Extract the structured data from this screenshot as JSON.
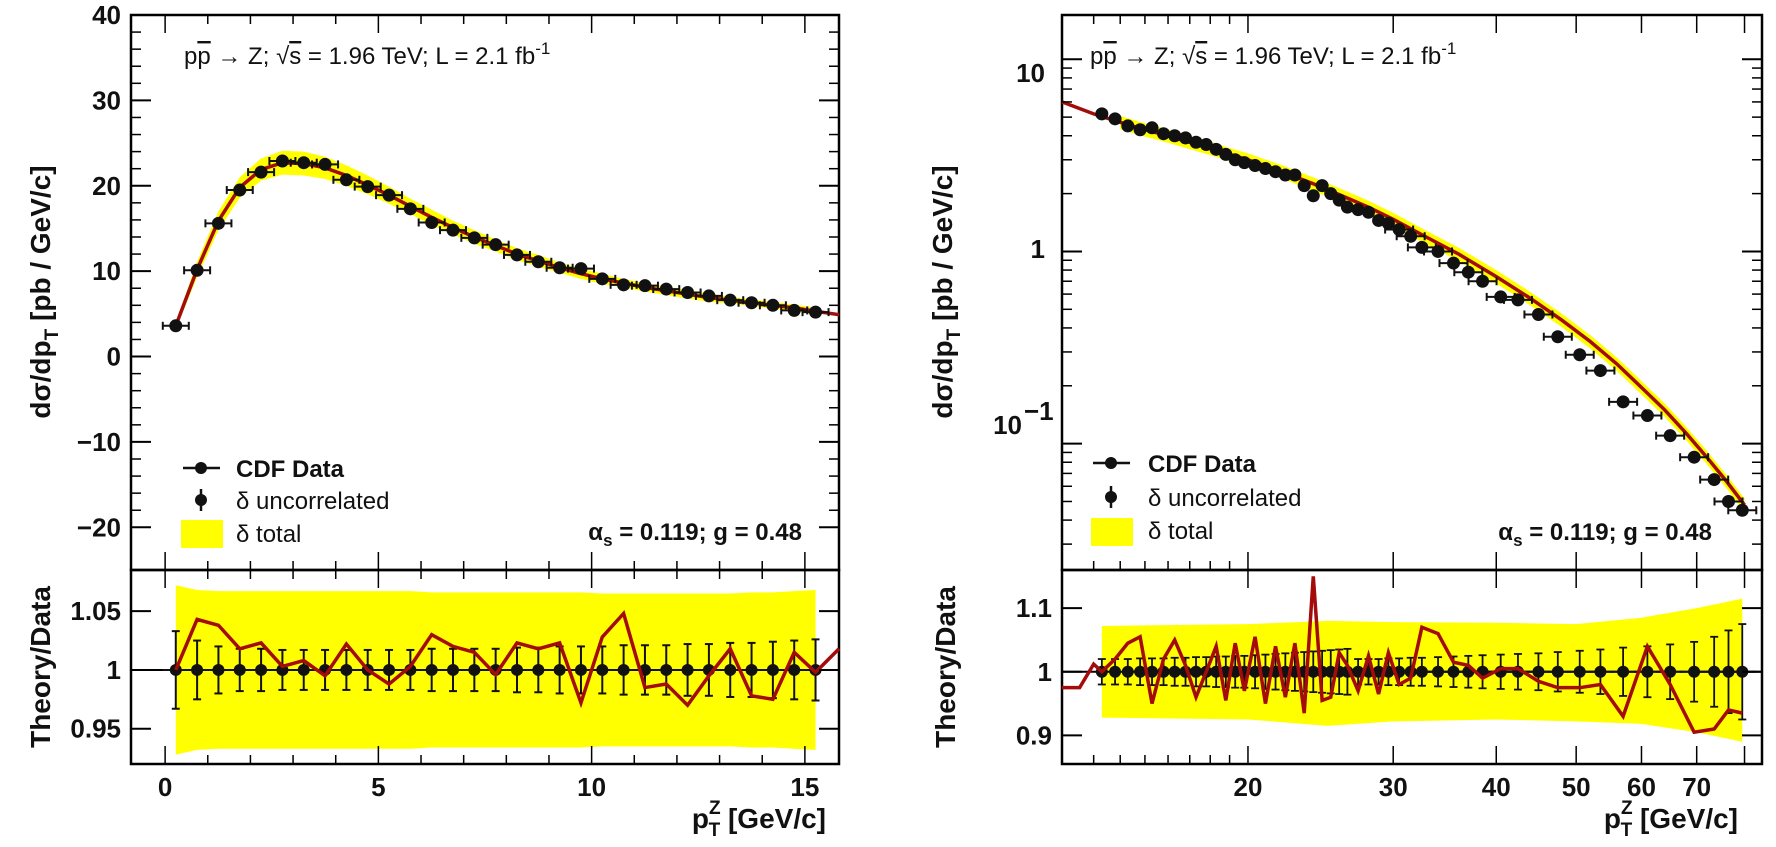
{
  "colors": {
    "band": "#ffff00",
    "theory": "#a40b0b",
    "data": "#111111",
    "axis": "#000000"
  },
  "chart_data": [
    {
      "type": "scatter",
      "panel": "left-top",
      "title": "",
      "ylabel": "dσ/dp_T [pb / GeV/c]",
      "ylabel_main": "dσ/dp",
      "ylabel_sub": "T",
      "ylabel_tail": " [pb / GeV/c]",
      "ylim": [
        -25,
        40
      ],
      "xlim": [
        -0.8,
        15.8
      ],
      "yscale": "linear",
      "yticks": [
        -20,
        -10,
        0,
        10,
        20,
        30,
        40
      ],
      "ytick_labels": [
        "−20",
        "−10",
        "0",
        "10",
        "20",
        "30",
        "40"
      ],
      "annotation": {
        "lhs": "p",
        "pbar": "p",
        "rest": " → Z; ",
        "sqrt": "√",
        "s": "s",
        "mid": " = 1.96 TeV; L = 2.1 fb",
        "exp": "-1"
      },
      "params": {
        "alpha": "α",
        "alpha_sub": "s",
        "rest": " = 0.119; g = 0.48"
      },
      "legend": [
        {
          "label": "CDF Data",
          "style": "line-marker"
        },
        {
          "label": "δ uncorrelated",
          "style": "marker-errorbar"
        },
        {
          "label": "δ total",
          "style": "fill"
        }
      ],
      "x": [
        0.25,
        0.75,
        1.25,
        1.75,
        2.25,
        2.75,
        3.25,
        3.75,
        4.25,
        4.75,
        5.25,
        5.75,
        6.25,
        6.75,
        7.25,
        7.75,
        8.25,
        8.75,
        9.25,
        9.75,
        10.25,
        10.75,
        11.25,
        11.75,
        12.25,
        12.75,
        13.25,
        13.75,
        14.25,
        14.75,
        15.25
      ],
      "y": [
        3.6,
        10.1,
        15.6,
        19.5,
        21.6,
        22.9,
        22.7,
        22.5,
        20.7,
        19.9,
        18.9,
        17.3,
        15.7,
        14.8,
        13.9,
        13.1,
        11.9,
        11.1,
        10.4,
        10.3,
        9.1,
        8.4,
        8.3,
        7.9,
        7.5,
        7.1,
        6.6,
        6.3,
        6.0,
        5.4,
        5.2
      ],
      "theory_x": [
        0.25,
        0.75,
        1.25,
        1.75,
        2.25,
        2.75,
        3.25,
        3.75,
        4.25,
        4.75,
        5.25,
        5.75,
        6.25,
        6.75,
        7.25,
        7.75,
        8.25,
        8.75,
        9.25,
        9.75,
        10.25,
        10.75,
        11.25,
        11.75,
        12.25,
        12.75,
        13.25,
        13.75,
        14.25,
        14.75,
        15.25,
        15.8
      ],
      "theory_y": [
        3.6,
        10.2,
        15.9,
        19.8,
        21.9,
        22.7,
        22.6,
        22.1,
        21.2,
        20.1,
        18.9,
        17.6,
        16.3,
        15.1,
        14.0,
        13.0,
        12.0,
        11.2,
        10.4,
        9.7,
        9.1,
        8.6,
        8.1,
        7.7,
        7.3,
        6.9,
        6.6,
        6.3,
        6.0,
        5.7,
        5.3,
        4.9
      ],
      "band_halfwidth": [
        0.4,
        0.9,
        1.1,
        1.2,
        1.3,
        1.4,
        1.4,
        1.3,
        1.2,
        1.1,
        1.0,
        0.9,
        0.9,
        0.8,
        0.8,
        0.7,
        0.7,
        0.7,
        0.6,
        0.6,
        0.6,
        0.5,
        0.5,
        0.5,
        0.5,
        0.5,
        0.4,
        0.4,
        0.4,
        0.4,
        0.4
      ]
    },
    {
      "type": "line",
      "panel": "left-ratio",
      "ylabel": "Theory/Data",
      "xlabel": "p_T^Z [GeV/c]",
      "xlabel_main": "p",
      "xlabel_sup": "Z",
      "xlabel_sub": "T",
      "xlabel_tail": " [GeV/c]",
      "ylim": [
        0.92,
        1.085
      ],
      "xlim": [
        -0.8,
        15.8
      ],
      "yticks": [
        0.95,
        1.0,
        1.05
      ],
      "ytick_labels": [
        "0.95",
        "1",
        "1.05"
      ],
      "xticks": [
        0,
        5,
        10,
        15
      ],
      "xtick_labels": [
        "0",
        "5",
        "10",
        "15"
      ],
      "x": [
        0.25,
        0.75,
        1.25,
        1.75,
        2.25,
        2.75,
        3.25,
        3.75,
        4.25,
        4.75,
        5.25,
        5.75,
        6.25,
        6.75,
        7.25,
        7.75,
        8.25,
        8.75,
        9.25,
        9.75,
        10.25,
        10.75,
        11.25,
        11.75,
        12.25,
        12.75,
        13.25,
        13.75,
        14.25,
        14.75,
        15.25
      ],
      "ratio": [
        1.0,
        1.043,
        1.038,
        1.018,
        1.023,
        1.003,
        1.008,
        0.995,
        1.022,
        1.0,
        0.988,
        1.003,
        1.03,
        1.02,
        1.015,
        0.996,
        1.023,
        1.018,
        1.023,
        0.972,
        1.028,
        1.048,
        0.985,
        0.988,
        0.97,
        0.995,
        1.018,
        0.978,
        0.975,
        1.015,
        0.998
      ],
      "ratio_tail": [
        15.8,
        1.018
      ],
      "err_half": [
        0.033,
        0.025,
        0.02,
        0.018,
        0.018,
        0.017,
        0.017,
        0.017,
        0.017,
        0.017,
        0.017,
        0.017,
        0.018,
        0.018,
        0.018,
        0.018,
        0.019,
        0.019,
        0.02,
        0.02,
        0.02,
        0.021,
        0.021,
        0.021,
        0.022,
        0.022,
        0.023,
        0.023,
        0.024,
        0.025,
        0.026
      ],
      "band_halfwidth": [
        0.072,
        0.068,
        0.067,
        0.067,
        0.067,
        0.067,
        0.067,
        0.067,
        0.067,
        0.067,
        0.067,
        0.067,
        0.066,
        0.066,
        0.066,
        0.066,
        0.066,
        0.066,
        0.066,
        0.066,
        0.065,
        0.065,
        0.065,
        0.065,
        0.065,
        0.065,
        0.065,
        0.066,
        0.066,
        0.067,
        0.068
      ]
    },
    {
      "type": "scatter",
      "panel": "right-top",
      "ylabel": "dσ/dp_T [pb / GeV/c]",
      "ylabel_main": "dσ/dp",
      "ylabel_sub": "T",
      "ylabel_tail": " [pb / GeV/c]",
      "yscale": "log",
      "ylim": [
        0.022,
        17
      ],
      "xlim": [
        11.9,
        84
      ],
      "xscale": "log",
      "yticks": [
        10,
        1,
        0.1
      ],
      "ytick_labels": [
        "10",
        "1",
        "10",
        "−1"
      ],
      "annotation": {
        "lhs": "p",
        "pbar": "p",
        "rest": " → Z; ",
        "sqrt": "√",
        "s": "s",
        "mid": " = 1.96 TeV; L = 2.1 fb",
        "exp": "-1"
      },
      "params": {
        "alpha": "α",
        "alpha_sub": "s",
        "rest": " = 0.119; g = 0.48"
      },
      "legend": [
        {
          "label": "CDF Data",
          "style": "line-marker"
        },
        {
          "label": "δ uncorrelated",
          "style": "marker-errorbar"
        },
        {
          "label": "δ total",
          "style": "fill"
        }
      ],
      "x": [
        13.3,
        13.8,
        14.3,
        14.8,
        15.3,
        15.8,
        16.3,
        16.8,
        17.3,
        17.8,
        18.3,
        18.8,
        19.3,
        19.8,
        20.4,
        21.0,
        21.6,
        22.2,
        22.8,
        23.4,
        24.0,
        24.6,
        25.2,
        25.8,
        26.4,
        27.2,
        28.0,
        28.8,
        29.6,
        30.5,
        31.5,
        32.5,
        34.0,
        35.5,
        37.0,
        38.5,
        40.5,
        42.5,
        45.0,
        47.5,
        50.5,
        53.5,
        57.0,
        61.0,
        65.0,
        69.5,
        73.5,
        76.5,
        79.5
      ],
      "y": [
        5.2,
        4.9,
        4.5,
        4.3,
        4.4,
        4.1,
        4.0,
        3.9,
        3.7,
        3.6,
        3.4,
        3.2,
        3.0,
        2.9,
        2.8,
        2.7,
        2.6,
        2.5,
        2.5,
        2.2,
        1.95,
        2.2,
        2.0,
        1.85,
        1.7,
        1.65,
        1.6,
        1.45,
        1.4,
        1.3,
        1.2,
        1.05,
        1.0,
        0.87,
        0.78,
        0.7,
        0.58,
        0.56,
        0.47,
        0.36,
        0.29,
        0.24,
        0.165,
        0.14,
        0.11,
        0.085,
        0.065,
        0.05,
        0.045
      ],
      "theory_x": [
        11.9,
        13,
        14,
        15,
        16,
        17,
        18,
        19,
        20,
        22,
        24,
        26,
        28,
        30,
        33,
        36,
        40,
        44,
        48,
        52,
        56,
        60,
        64,
        68,
        72,
        76,
        80
      ],
      "theory_y": [
        6.0,
        5.2,
        4.7,
        4.3,
        4.0,
        3.7,
        3.45,
        3.2,
        3.0,
        2.6,
        2.25,
        1.95,
        1.7,
        1.47,
        1.18,
        0.97,
        0.74,
        0.57,
        0.44,
        0.34,
        0.26,
        0.196,
        0.15,
        0.113,
        0.085,
        0.064,
        0.048
      ],
      "band_rel": 0.08
    },
    {
      "type": "line",
      "panel": "right-ratio",
      "ylabel": "Theory/Data",
      "xlabel": "p_T^Z [GeV/c]",
      "xlabel_main": "p",
      "xlabel_sup": "Z",
      "xlabel_sub": "T",
      "xlabel_tail": " [GeV/c]",
      "ylim": [
        0.855,
        1.16
      ],
      "xlim": [
        11.9,
        84
      ],
      "xscale": "log",
      "yticks": [
        0.9,
        1.0,
        1.1
      ],
      "ytick_labels": [
        "0.9",
        "1",
        "1.1"
      ],
      "xticks": [
        20,
        30,
        40,
        50,
        60,
        70
      ],
      "xtick_labels": [
        "20",
        "30",
        "40",
        "50",
        "60",
        "70"
      ],
      "x": [
        13.3,
        13.8,
        14.3,
        14.8,
        15.3,
        15.8,
        16.3,
        16.8,
        17.3,
        17.8,
        18.3,
        18.8,
        19.3,
        19.8,
        20.4,
        21.0,
        21.6,
        22.2,
        22.8,
        23.4,
        24.0,
        24.6,
        25.2,
        25.8,
        26.4,
        27.2,
        28.0,
        28.8,
        29.6,
        30.5,
        31.5,
        32.5,
        34.0,
        35.5,
        37.0,
        38.5,
        40.5,
        42.5,
        45.0,
        47.5,
        50.5,
        53.5,
        57.0,
        61.0,
        65.0,
        69.5,
        73.5,
        76.5,
        79.5
      ],
      "ratio_line": [
        [
          11.9,
          0.975
        ],
        [
          12.5,
          0.975
        ],
        [
          13.0,
          1.012
        ],
        [
          13.3,
          1.0
        ],
        [
          13.8,
          1.02
        ],
        [
          14.3,
          1.045
        ],
        [
          14.8,
          1.055
        ],
        [
          15.3,
          0.95
        ],
        [
          15.8,
          1.02
        ],
        [
          16.3,
          1.05
        ],
        [
          16.8,
          1.01
        ],
        [
          17.3,
          0.96
        ],
        [
          17.8,
          1.0
        ],
        [
          18.3,
          1.04
        ],
        [
          18.8,
          0.955
        ],
        [
          19.3,
          1.045
        ],
        [
          19.8,
          0.97
        ],
        [
          20.4,
          1.055
        ],
        [
          21.0,
          0.95
        ],
        [
          21.6,
          1.04
        ],
        [
          22.2,
          0.96
        ],
        [
          22.8,
          1.045
        ],
        [
          23.4,
          0.935
        ],
        [
          24.0,
          1.15
        ],
        [
          24.6,
          0.955
        ],
        [
          25.2,
          0.96
        ],
        [
          25.8,
          1.03
        ],
        [
          26.4,
          1.01
        ],
        [
          27.2,
          0.97
        ],
        [
          28.0,
          1.025
        ],
        [
          28.8,
          0.965
        ],
        [
          29.6,
          1.03
        ],
        [
          30.5,
          0.98
        ],
        [
          31.5,
          0.99
        ],
        [
          32.5,
          1.07
        ],
        [
          34.0,
          1.06
        ],
        [
          35.5,
          1.015
        ],
        [
          37.0,
          1.01
        ],
        [
          38.5,
          0.99
        ],
        [
          40.5,
          1.005
        ],
        [
          42.5,
          1.005
        ],
        [
          45.0,
          0.985
        ],
        [
          47.5,
          0.975
        ],
        [
          50.5,
          0.975
        ],
        [
          53.5,
          0.98
        ],
        [
          57.0,
          0.93
        ],
        [
          61.0,
          1.04
        ],
        [
          65.0,
          0.98
        ],
        [
          69.5,
          0.905
        ],
        [
          73.5,
          0.91
        ],
        [
          76.5,
          0.94
        ],
        [
          79.5,
          0.935
        ]
      ],
      "err_half": [
        0.02,
        0.02,
        0.02,
        0.021,
        0.021,
        0.021,
        0.022,
        0.022,
        0.023,
        0.023,
        0.024,
        0.024,
        0.025,
        0.025,
        0.026,
        0.027,
        0.028,
        0.029,
        0.03,
        0.031,
        0.032,
        0.033,
        0.034,
        0.035,
        0.036,
        0.02,
        0.02,
        0.02,
        0.021,
        0.021,
        0.022,
        0.022,
        0.023,
        0.024,
        0.025,
        0.026,
        0.027,
        0.028,
        0.029,
        0.031,
        0.033,
        0.035,
        0.038,
        0.04,
        0.043,
        0.047,
        0.055,
        0.065,
        0.075
      ],
      "band": [
        [
          13.3,
          0.928,
          1.072
        ],
        [
          20,
          0.925,
          1.075
        ],
        [
          25,
          0.915,
          1.08
        ],
        [
          30,
          0.922,
          1.078
        ],
        [
          40,
          0.925,
          1.077
        ],
        [
          50,
          0.922,
          1.075
        ],
        [
          60,
          0.918,
          1.085
        ],
        [
          70,
          0.905,
          1.1
        ],
        [
          79.5,
          0.89,
          1.115
        ]
      ]
    }
  ]
}
